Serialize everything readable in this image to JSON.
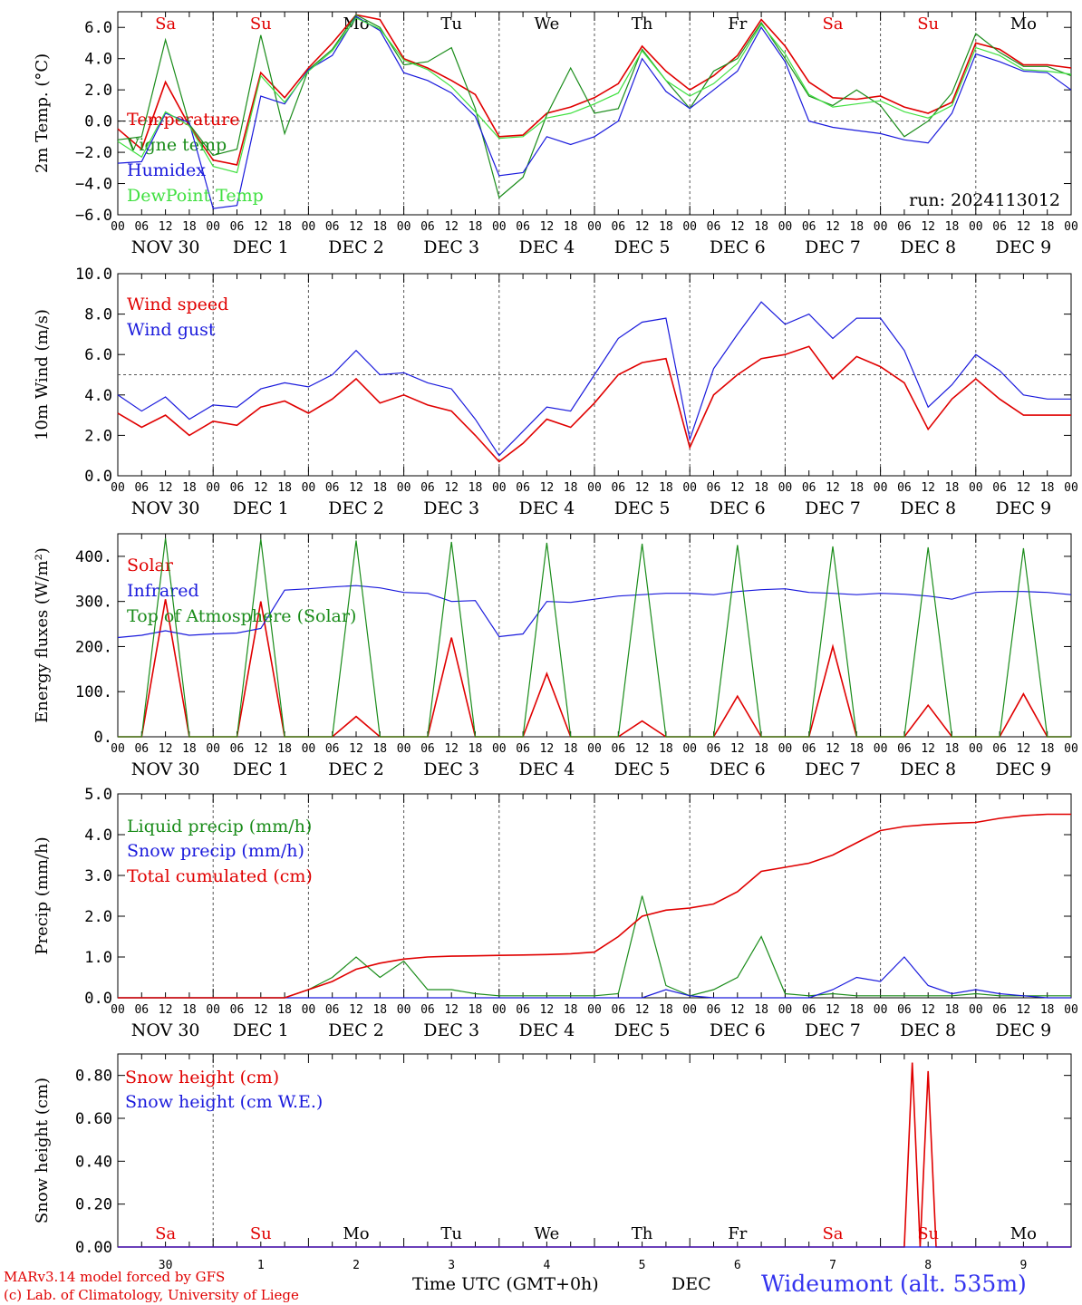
{
  "station": "Wideumont (alt. 535m)",
  "credits": [
    "MARv3.14 model forced by GFS",
    "(c) Lab. of Climatology, University of Liege"
  ],
  "x_axis_title": "Time UTC (GMT+0h)",
  "month_label": "DEC",
  "colors": {
    "red": "#e00000",
    "green": "#1a8c1a",
    "blue": "#1a1adc",
    "lightgreen": "#40e040",
    "grid": "#555555"
  },
  "time_axis": {
    "days": 10,
    "hour_ticks": [
      "00",
      "06",
      "12",
      "18"
    ],
    "date_labels": [
      "NOV 30",
      "DEC  1",
      "DEC  2",
      "DEC  3",
      "DEC  4",
      "DEC  5",
      "DEC  6",
      "DEC  7",
      "DEC  8",
      "DEC  9"
    ],
    "weekdays": [
      "Sa",
      "Su",
      "Mo",
      "Tu",
      "We",
      "Th",
      "Fr",
      "Sa",
      "Su",
      "Mo"
    ],
    "weekday_colors": [
      "red",
      "red",
      "black",
      "black",
      "black",
      "black",
      "black",
      "red",
      "red",
      "black"
    ],
    "bottom_day_numbers": [
      "30",
      "1",
      "2",
      "3",
      "4",
      "5",
      "6",
      "7",
      "8",
      "9"
    ]
  },
  "chart_data": [
    {
      "type": "line",
      "id": "temp",
      "ylabel": "2m Temp. (°C)",
      "ylim": [
        -6,
        7
      ],
      "yticks": [
        "6.0",
        "4.0",
        "2.0",
        "0.0",
        "−2.0",
        "−4.0",
        "−6.0"
      ],
      "ytick_values": [
        6,
        4,
        2,
        0,
        -2,
        -4,
        -6
      ],
      "ref_line": 0,
      "annotation": "run: 2024113012",
      "show_weekdays": true,
      "x_hours": [
        0,
        6,
        12,
        18,
        24,
        30,
        36,
        42,
        48,
        54,
        60,
        66,
        72,
        78,
        84,
        90,
        96,
        102,
        108,
        114,
        120,
        126,
        132,
        138,
        144,
        150,
        156,
        162,
        168,
        174,
        180,
        186,
        192,
        198,
        204,
        210,
        216,
        222,
        228,
        234,
        240
      ],
      "series": [
        {
          "name": "Temperature",
          "color": "red",
          "values": [
            -0.5,
            -1.8,
            2.5,
            -0.3,
            -2.5,
            -2.8,
            3.1,
            1.5,
            3.4,
            5.0,
            6.8,
            6.5,
            4.0,
            3.4,
            2.6,
            1.7,
            -1.0,
            -0.9,
            0.5,
            0.9,
            1.5,
            2.4,
            4.8,
            3.2,
            2.0,
            2.9,
            4.2,
            6.5,
            4.8,
            2.5,
            1.5,
            1.4,
            1.6,
            0.9,
            0.5,
            1.2,
            5.0,
            4.6,
            3.6,
            3.6,
            3.4
          ]
        },
        {
          "name": "Vigne temp",
          "color": "green",
          "values": [
            -1.2,
            -1.0,
            5.2,
            -0.2,
            -2.2,
            -1.8,
            5.5,
            -0.8,
            3.3,
            4.6,
            6.8,
            6.0,
            3.6,
            3.8,
            4.7,
            0.8,
            -4.9,
            -3.6,
            0.4,
            3.4,
            0.5,
            0.8,
            4.6,
            2.6,
            0.8,
            3.2,
            4.0,
            6.3,
            4.0,
            1.6,
            1.0,
            2.0,
            1.0,
            -1.0,
            0.0,
            1.8,
            5.6,
            4.4,
            3.5,
            3.5,
            2.9
          ]
        },
        {
          "name": "Humidex",
          "color": "blue",
          "values": [
            -2.7,
            -2.6,
            0.5,
            -0.1,
            -5.6,
            -5.4,
            1.6,
            1.1,
            3.3,
            4.2,
            6.7,
            5.8,
            3.1,
            2.6,
            1.8,
            0.3,
            -3.5,
            -3.3,
            -1.0,
            -1.5,
            -1.0,
            0.0,
            4.0,
            1.9,
            0.8,
            2.0,
            3.2,
            6.0,
            3.8,
            0.0,
            -0.4,
            -0.6,
            -0.8,
            -1.2,
            -1.4,
            0.5,
            4.3,
            3.8,
            3.2,
            3.1,
            2.0
          ]
        },
        {
          "name": "DewPoint Temp",
          "color": "lightgreen",
          "values": [
            -1.3,
            -2.3,
            0.6,
            -0.3,
            -2.9,
            -3.3,
            2.9,
            1.2,
            3.2,
            4.5,
            6.6,
            5.9,
            3.9,
            3.3,
            2.2,
            0.6,
            -1.1,
            -1.0,
            0.2,
            0.5,
            1.1,
            1.8,
            4.5,
            2.6,
            1.6,
            2.4,
            3.7,
            6.2,
            4.3,
            1.7,
            0.9,
            1.1,
            1.3,
            0.6,
            0.2,
            1.0,
            4.7,
            4.2,
            3.3,
            3.2,
            3.0
          ]
        }
      ]
    },
    {
      "type": "line",
      "id": "wind",
      "ylabel": "10m Wind (m/s)",
      "ylim": [
        0,
        10
      ],
      "yticks": [
        "10.0",
        "8.0",
        "6.0",
        "4.0",
        "2.0",
        "0.0"
      ],
      "ytick_values": [
        10,
        8,
        6,
        4,
        2,
        0
      ],
      "ref_line": 5,
      "x_hours": [
        0,
        6,
        12,
        18,
        24,
        30,
        36,
        42,
        48,
        54,
        60,
        66,
        72,
        78,
        84,
        90,
        96,
        102,
        108,
        114,
        120,
        126,
        132,
        138,
        144,
        150,
        156,
        162,
        168,
        174,
        180,
        186,
        192,
        198,
        204,
        210,
        216,
        222,
        228,
        234,
        240
      ],
      "series": [
        {
          "name": "Wind speed",
          "color": "red",
          "values": [
            3.1,
            2.4,
            3.0,
            2.0,
            2.7,
            2.5,
            3.4,
            3.7,
            3.1,
            3.8,
            4.8,
            3.6,
            4.0,
            3.5,
            3.2,
            2.0,
            0.7,
            1.6,
            2.8,
            2.4,
            3.6,
            5.0,
            5.6,
            5.8,
            1.4,
            4.0,
            5.0,
            5.8,
            6.0,
            6.4,
            4.8,
            5.9,
            5.4,
            4.6,
            2.3,
            3.8,
            4.8,
            3.8,
            3.0,
            3.0,
            3.0
          ]
        },
        {
          "name": "Wind gust",
          "color": "blue",
          "values": [
            4.0,
            3.2,
            3.9,
            2.8,
            3.5,
            3.4,
            4.3,
            4.6,
            4.4,
            5.0,
            6.2,
            5.0,
            5.1,
            4.6,
            4.3,
            2.8,
            1.0,
            2.2,
            3.4,
            3.2,
            5.0,
            6.8,
            7.6,
            7.8,
            1.8,
            5.3,
            7.0,
            8.6,
            7.5,
            8.0,
            6.8,
            7.8,
            7.8,
            6.2,
            3.4,
            4.5,
            6.0,
            5.2,
            4.0,
            3.8,
            3.8
          ]
        }
      ]
    },
    {
      "type": "line",
      "id": "energy",
      "ylabel": "Energy fluxes (W/m²)",
      "ylim": [
        0,
        450
      ],
      "yticks": [
        "400.",
        "300.",
        "200.",
        "100.",
        "0."
      ],
      "ytick_values": [
        400,
        300,
        200,
        100,
        0
      ],
      "ref_line": null,
      "x_hours": [
        0,
        6,
        12,
        18,
        24,
        30,
        36,
        42,
        48,
        54,
        60,
        66,
        72,
        78,
        84,
        90,
        96,
        102,
        108,
        114,
        120,
        126,
        132,
        138,
        144,
        150,
        156,
        162,
        168,
        174,
        180,
        186,
        192,
        198,
        204,
        210,
        216,
        222,
        228,
        234,
        240
      ],
      "series": [
        {
          "name": "Solar",
          "color": "red",
          "values": [
            0,
            0,
            305,
            0,
            0,
            0,
            300,
            0,
            0,
            0,
            45,
            0,
            0,
            0,
            220,
            0,
            0,
            0,
            140,
            0,
            0,
            0,
            35,
            0,
            0,
            0,
            90,
            0,
            0,
            0,
            200,
            0,
            0,
            0,
            70,
            0,
            0,
            0,
            95,
            0,
            0
          ]
        },
        {
          "name": "Infrared",
          "color": "blue",
          "values": [
            220,
            225,
            235,
            225,
            228,
            230,
            240,
            325,
            328,
            332,
            335,
            330,
            320,
            318,
            300,
            302,
            222,
            228,
            300,
            298,
            305,
            312,
            315,
            318,
            318,
            315,
            322,
            326,
            328,
            320,
            318,
            315,
            318,
            316,
            312,
            305,
            320,
            322,
            322,
            320,
            315
          ]
        },
        {
          "name": "Top of Atmosphere (Solar)",
          "color": "green",
          "values": [
            0,
            0,
            440,
            0,
            0,
            0,
            438,
            0,
            0,
            0,
            435,
            0,
            0,
            0,
            432,
            0,
            0,
            0,
            430,
            0,
            0,
            0,
            428,
            0,
            0,
            0,
            425,
            0,
            0,
            0,
            422,
            0,
            0,
            0,
            420,
            0,
            0,
            0,
            418,
            0,
            0
          ]
        }
      ]
    },
    {
      "type": "line",
      "id": "precip",
      "ylabel": "Precip (mm/h)",
      "ylim": [
        0,
        5
      ],
      "yticks": [
        "5.0",
        "4.0",
        "3.0",
        "2.0",
        "1.0",
        "0.0"
      ],
      "ytick_values": [
        5,
        4,
        3,
        2,
        1,
        0
      ],
      "ref_line": null,
      "x_hours": [
        0,
        6,
        12,
        18,
        24,
        30,
        36,
        42,
        48,
        54,
        60,
        66,
        72,
        78,
        84,
        90,
        96,
        102,
        108,
        114,
        120,
        126,
        132,
        138,
        144,
        150,
        156,
        162,
        168,
        174,
        180,
        186,
        192,
        198,
        204,
        210,
        216,
        222,
        228,
        234,
        240
      ],
      "series": [
        {
          "name": "Liquid precip (mm/h)",
          "color": "green",
          "values": [
            0,
            0,
            0,
            0,
            0,
            0,
            0,
            0,
            0.2,
            0.5,
            1.0,
            0.5,
            0.9,
            0.2,
            0.2,
            0.1,
            0.05,
            0.05,
            0.05,
            0.05,
            0.05,
            0.1,
            2.5,
            0.3,
            0.05,
            0.2,
            0.5,
            1.5,
            0.1,
            0.05,
            0.1,
            0.05,
            0.05,
            0.05,
            0.05,
            0.05,
            0.1,
            0.05,
            0.05,
            0.05,
            0.05
          ]
        },
        {
          "name": "Snow precip (mm/h)",
          "color": "blue",
          "values": [
            0,
            0,
            0,
            0,
            0,
            0,
            0,
            0,
            0,
            0,
            0,
            0,
            0,
            0,
            0,
            0,
            0,
            0,
            0,
            0,
            0,
            0,
            0,
            0.2,
            0.05,
            0,
            0,
            0,
            0,
            0,
            0.2,
            0.5,
            0.4,
            1.0,
            0.3,
            0.1,
            0.2,
            0.1,
            0.05,
            0,
            0
          ]
        },
        {
          "name": "Total cumulated (cm)",
          "color": "red",
          "values": [
            0,
            0,
            0,
            0,
            0,
            0,
            0,
            0,
            0.2,
            0.4,
            0.7,
            0.85,
            0.95,
            1.0,
            1.02,
            1.03,
            1.04,
            1.05,
            1.06,
            1.08,
            1.12,
            1.5,
            2.0,
            2.15,
            2.2,
            2.3,
            2.6,
            3.1,
            3.2,
            3.3,
            3.5,
            3.8,
            4.1,
            4.2,
            4.25,
            4.28,
            4.3,
            4.4,
            4.47,
            4.5,
            4.5
          ]
        }
      ]
    },
    {
      "type": "line",
      "id": "snow",
      "ylabel": "Snow height (cm)",
      "ylim": [
        0,
        0.9
      ],
      "yticks": [
        "0.80",
        "0.60",
        "0.40",
        "0.20",
        "0.00"
      ],
      "ytick_values": [
        0.8,
        0.6,
        0.4,
        0.2,
        0
      ],
      "ref_line": null,
      "show_weekdays_bottom": true,
      "x_hours": [
        0,
        198,
        200,
        202,
        204,
        206,
        208,
        240
      ],
      "series": [
        {
          "name": "Snow height (cm)",
          "color": "red",
          "values": [
            0,
            0,
            0.86,
            0,
            0.82,
            0,
            0,
            0
          ]
        },
        {
          "name": "Snow height (cm W.E.)",
          "color": "blue",
          "values": [
            0,
            0,
            0,
            0,
            0,
            0,
            0,
            0
          ]
        }
      ]
    }
  ]
}
